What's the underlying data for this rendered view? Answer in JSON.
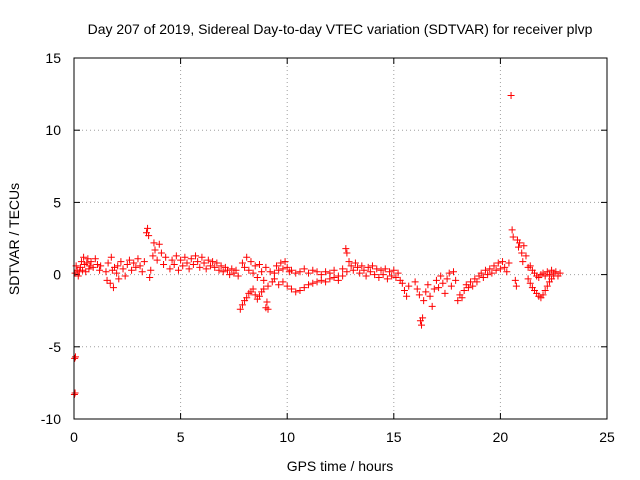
{
  "chart_data": {
    "type": "scatter",
    "title": "Day 207 of 2019, Sidereal Day-to-day VTEC variation (SDTVAR) for receiver plvp",
    "xlabel": "GPS time / hours",
    "ylabel": "SDTVAR / TECUs",
    "xlim": [
      0,
      25
    ],
    "ylim": [
      -10,
      15
    ],
    "xticks": [
      "0",
      "5",
      "10",
      "15",
      "20",
      "25"
    ],
    "yticks": [
      "-10",
      "-5",
      "0",
      "5",
      "10",
      "15"
    ],
    "grid": true,
    "marker": "plus",
    "series_color": "#ff0000",
    "series": [
      {
        "name": "SDTVAR",
        "points": [
          [
            0.02,
            -8.3
          ],
          [
            0.05,
            -8.2
          ],
          [
            0.03,
            -5.8
          ],
          [
            0.07,
            -5.7
          ],
          [
            0.05,
            0.1
          ],
          [
            0.1,
            0.6
          ],
          [
            0.15,
            0.3
          ],
          [
            0.2,
            -0.1
          ],
          [
            0.25,
            0.2
          ],
          [
            0.3,
            0.5
          ],
          [
            0.35,
            0.9
          ],
          [
            0.4,
            0.3
          ],
          [
            0.45,
            1.2
          ],
          [
            0.5,
            0.7
          ],
          [
            0.55,
            0.2
          ],
          [
            0.6,
            0.8
          ],
          [
            0.65,
            1.1
          ],
          [
            0.7,
            0.4
          ],
          [
            0.75,
            0.6
          ],
          [
            0.8,
            0.9
          ],
          [
            0.9,
            0.5
          ],
          [
            1.0,
            1.1
          ],
          [
            1.1,
            0.7
          ],
          [
            1.2,
            0.3
          ],
          [
            1.25,
            0.6
          ],
          [
            1.5,
            0.2
          ],
          [
            1.55,
            -0.4
          ],
          [
            1.6,
            0.8
          ],
          [
            1.7,
            -0.6
          ],
          [
            1.75,
            1.2
          ],
          [
            1.8,
            0.3
          ],
          [
            1.85,
            -0.9
          ],
          [
            1.9,
            0.5
          ],
          [
            2.0,
            0.1
          ],
          [
            2.05,
            0.6
          ],
          [
            2.1,
            -0.3
          ],
          [
            2.2,
            0.9
          ],
          [
            2.3,
            0.4
          ],
          [
            2.4,
            -0.1
          ],
          [
            2.5,
            0.7
          ],
          [
            2.6,
            1.0
          ],
          [
            2.7,
            0.3
          ],
          [
            2.8,
            0.8
          ],
          [
            2.9,
            0.5
          ],
          [
            3.0,
            1.1
          ],
          [
            3.1,
            0.6
          ],
          [
            3.2,
            0.2
          ],
          [
            3.3,
            0.9
          ],
          [
            3.4,
            2.9
          ],
          [
            3.45,
            3.2
          ],
          [
            3.5,
            2.7
          ],
          [
            3.55,
            -0.2
          ],
          [
            3.6,
            0.3
          ],
          [
            3.7,
            1.3
          ],
          [
            3.75,
            2.2
          ],
          [
            3.8,
            1.7
          ],
          [
            3.9,
            1.0
          ],
          [
            4.0,
            2.1
          ],
          [
            4.1,
            1.5
          ],
          [
            4.2,
            0.7
          ],
          [
            4.3,
            1.2
          ],
          [
            4.5,
            0.4
          ],
          [
            4.6,
            1.0
          ],
          [
            4.7,
            0.7
          ],
          [
            4.8,
            1.3
          ],
          [
            4.9,
            0.3
          ],
          [
            5.0,
            1.0
          ],
          [
            5.1,
            0.6
          ],
          [
            5.2,
            1.2
          ],
          [
            5.3,
            0.8
          ],
          [
            5.4,
            0.4
          ],
          [
            5.5,
            1.1
          ],
          [
            5.6,
            0.7
          ],
          [
            5.7,
            1.3
          ],
          [
            5.8,
            0.9
          ],
          [
            5.9,
            0.5
          ],
          [
            6.0,
            1.2
          ],
          [
            6.1,
            0.8
          ],
          [
            6.2,
            0.4
          ],
          [
            6.3,
            1.0
          ],
          [
            6.4,
            0.6
          ],
          [
            6.5,
            0.9
          ],
          [
            6.6,
            0.5
          ],
          [
            6.7,
            0.8
          ],
          [
            6.8,
            0.3
          ],
          [
            6.9,
            0.6
          ],
          [
            7.0,
            0.2
          ],
          [
            7.1,
            0.5
          ],
          [
            7.2,
            0.3
          ],
          [
            7.3,
            0.0
          ],
          [
            7.4,
            0.4
          ],
          [
            7.5,
            0.1
          ],
          [
            7.6,
            0.3
          ],
          [
            7.7,
            -0.1
          ],
          [
            7.8,
            -2.4
          ],
          [
            7.9,
            -2.1
          ],
          [
            8.0,
            -1.8
          ],
          [
            8.1,
            -1.6
          ],
          [
            8.2,
            -1.3
          ],
          [
            8.3,
            -1.2
          ],
          [
            8.4,
            -1.0
          ],
          [
            8.5,
            -1.4
          ],
          [
            8.6,
            -1.7
          ],
          [
            8.7,
            -1.5
          ],
          [
            8.8,
            -1.2
          ],
          [
            8.9,
            -1.0
          ],
          [
            9.0,
            -2.3
          ],
          [
            9.05,
            -1.9
          ],
          [
            9.1,
            -2.4
          ],
          [
            7.9,
            0.8
          ],
          [
            8.0,
            0.5
          ],
          [
            8.1,
            1.2
          ],
          [
            8.2,
            0.3
          ],
          [
            8.3,
            0.9
          ],
          [
            8.4,
            0.1
          ],
          [
            8.5,
            0.6
          ],
          [
            8.6,
            -0.2
          ],
          [
            8.7,
            0.7
          ],
          [
            8.8,
            0.2
          ],
          [
            8.9,
            -0.4
          ],
          [
            9.0,
            0.5
          ],
          [
            9.1,
            -0.8
          ],
          [
            9.2,
            0.2
          ],
          [
            9.3,
            -0.5
          ],
          [
            9.4,
            0.1
          ],
          [
            9.5,
            0.6
          ],
          [
            9.6,
            0.3
          ],
          [
            9.7,
            0.8
          ],
          [
            9.8,
            0.4
          ],
          [
            9.9,
            0.9
          ],
          [
            10.0,
            0.5
          ],
          [
            10.1,
            0.2
          ],
          [
            9.4,
            -0.3
          ],
          [
            9.6,
            -0.7
          ],
          [
            9.8,
            -0.5
          ],
          [
            10.0,
            -0.8
          ],
          [
            10.2,
            -1.0
          ],
          [
            10.4,
            -1.2
          ],
          [
            10.6,
            -1.1
          ],
          [
            10.8,
            -0.9
          ],
          [
            11.0,
            -0.7
          ],
          [
            11.2,
            -0.6
          ],
          [
            11.4,
            -0.5
          ],
          [
            11.6,
            -0.4
          ],
          [
            11.8,
            -0.5
          ],
          [
            12.0,
            -0.3
          ],
          [
            12.2,
            -0.2
          ],
          [
            12.4,
            -0.4
          ],
          [
            12.6,
            -0.1
          ],
          [
            10.2,
            0.3
          ],
          [
            10.4,
            0.1
          ],
          [
            10.6,
            0.2
          ],
          [
            10.8,
            0.4
          ],
          [
            11.0,
            0.1
          ],
          [
            11.2,
            0.3
          ],
          [
            11.4,
            0.2
          ],
          [
            11.6,
            0.0
          ],
          [
            11.8,
            0.2
          ],
          [
            12.0,
            0.1
          ],
          [
            12.2,
            0.3
          ],
          [
            12.4,
            -0.1
          ],
          [
            12.6,
            0.4
          ],
          [
            12.75,
            1.8
          ],
          [
            12.8,
            1.5
          ],
          [
            12.8,
            0.2
          ],
          [
            12.9,
            0.9
          ],
          [
            13.0,
            0.6
          ],
          [
            13.1,
            0.3
          ],
          [
            13.2,
            0.8
          ],
          [
            13.3,
            0.5
          ],
          [
            13.4,
            0.1
          ],
          [
            13.5,
            0.6
          ],
          [
            13.6,
            0.3
          ],
          [
            13.7,
            -0.1
          ],
          [
            13.8,
            0.5
          ],
          [
            13.9,
            0.2
          ],
          [
            14.0,
            0.6
          ],
          [
            14.1,
            0.0
          ],
          [
            14.2,
            0.4
          ],
          [
            14.3,
            -0.2
          ],
          [
            14.4,
            0.3
          ],
          [
            14.5,
            0.0
          ],
          [
            14.6,
            0.4
          ],
          [
            14.7,
            -0.3
          ],
          [
            14.8,
            0.2
          ],
          [
            14.9,
            -0.1
          ],
          [
            15.0,
            0.3
          ],
          [
            15.1,
            -0.2
          ],
          [
            15.2,
            0.1
          ],
          [
            15.3,
            -0.4
          ],
          [
            15.4,
            -0.6
          ],
          [
            15.5,
            -1.1
          ],
          [
            15.6,
            -1.5
          ],
          [
            15.7,
            -0.8
          ],
          [
            16.0,
            -0.5
          ],
          [
            16.1,
            -1.0
          ],
          [
            16.2,
            -1.4
          ],
          [
            16.25,
            -3.2
          ],
          [
            16.3,
            -3.5
          ],
          [
            16.35,
            -3.0
          ],
          [
            16.4,
            -1.8
          ],
          [
            16.5,
            -1.2
          ],
          [
            16.6,
            -0.7
          ],
          [
            16.7,
            -1.5
          ],
          [
            16.8,
            -2.2
          ],
          [
            16.9,
            -1.0
          ],
          [
            17.0,
            -0.4
          ],
          [
            17.1,
            -0.9
          ],
          [
            17.2,
            -0.1
          ],
          [
            17.3,
            -0.6
          ],
          [
            17.4,
            -1.3
          ],
          [
            17.5,
            -0.3
          ],
          [
            17.6,
            0.1
          ],
          [
            17.7,
            -0.8
          ],
          [
            17.8,
            0.2
          ],
          [
            17.9,
            -0.4
          ],
          [
            18.0,
            -1.8
          ],
          [
            18.1,
            -1.4
          ],
          [
            18.2,
            -1.6
          ],
          [
            18.3,
            -1.1
          ],
          [
            18.4,
            -0.7
          ],
          [
            18.5,
            -0.9
          ],
          [
            18.6,
            -0.5
          ],
          [
            18.7,
            -0.8
          ],
          [
            18.8,
            -0.3
          ],
          [
            18.9,
            -0.5
          ],
          [
            19.0,
            -0.1
          ],
          [
            19.1,
            0.1
          ],
          [
            19.2,
            -0.2
          ],
          [
            19.3,
            0.3
          ],
          [
            19.4,
            0.0
          ],
          [
            19.5,
            0.4
          ],
          [
            19.6,
            0.1
          ],
          [
            19.7,
            0.6
          ],
          [
            19.8,
            0.3
          ],
          [
            19.9,
            0.8
          ],
          [
            20.0,
            0.4
          ],
          [
            20.1,
            0.9
          ],
          [
            20.2,
            0.5
          ],
          [
            20.3,
            0.2
          ],
          [
            20.4,
            0.8
          ],
          [
            20.5,
            12.4
          ],
          [
            20.55,
            3.1
          ],
          [
            20.6,
            2.6
          ],
          [
            20.7,
            -0.4
          ],
          [
            20.75,
            -0.8
          ],
          [
            20.8,
            2.4
          ],
          [
            20.85,
            1.9
          ],
          [
            20.9,
            2.2
          ],
          [
            21.0,
            1.5
          ],
          [
            21.05,
            0.9
          ],
          [
            21.1,
            2.0
          ],
          [
            21.2,
            1.3
          ],
          [
            21.3,
            0.5
          ],
          [
            21.3,
            -0.3
          ],
          [
            21.4,
            -0.6
          ],
          [
            21.5,
            -0.9
          ],
          [
            21.6,
            -1.1
          ],
          [
            21.7,
            -1.3
          ],
          [
            21.8,
            -1.5
          ],
          [
            21.9,
            -1.6
          ],
          [
            22.0,
            -1.4
          ],
          [
            22.1,
            -1.1
          ],
          [
            22.2,
            -0.8
          ],
          [
            22.3,
            -0.5
          ],
          [
            22.4,
            -0.3
          ],
          [
            22.5,
            -0.1
          ],
          [
            21.4,
            0.6
          ],
          [
            21.5,
            0.3
          ],
          [
            21.6,
            0.1
          ],
          [
            21.7,
            -0.1
          ],
          [
            21.8,
            -0.2
          ],
          [
            21.9,
            0.0
          ],
          [
            22.0,
            0.1
          ],
          [
            22.1,
            -0.1
          ],
          [
            22.2,
            0.2
          ],
          [
            22.3,
            0.0
          ],
          [
            22.4,
            0.3
          ],
          [
            22.5,
            0.1
          ],
          [
            22.6,
            0.2
          ],
          [
            22.7,
            -0.1
          ],
          [
            22.8,
            0.1
          ]
        ]
      }
    ]
  }
}
